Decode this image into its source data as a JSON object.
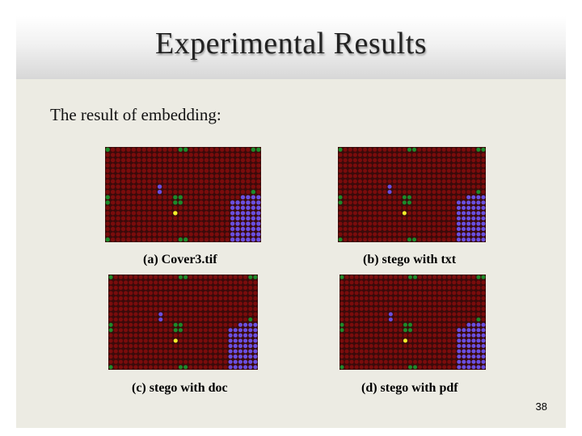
{
  "slide": {
    "title": "Experimental Results",
    "subtitle": "The result of embedding:",
    "page_number": "38"
  },
  "panels": [
    {
      "caption": "(a) Cover3.tif"
    },
    {
      "caption": "(b) stego with txt"
    },
    {
      "caption": "(c) stego with doc"
    },
    {
      "caption": "(d) stego with pdf"
    }
  ],
  "colors": {
    "background_dot": "#7a0c0c",
    "green_dot": "#1d8a2a",
    "blue_dot": "#6a4fe0",
    "yellow_dot": "#f3ee2a",
    "cell_gap": "#3a0a0a"
  }
}
